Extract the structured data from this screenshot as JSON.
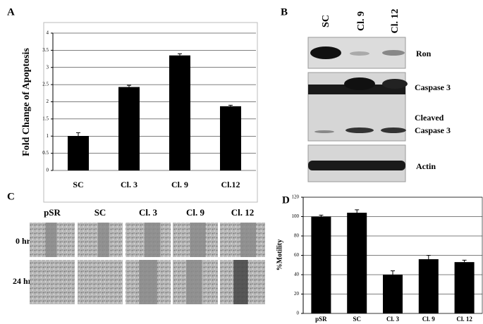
{
  "chart_data": [
    {
      "type": "bar",
      "panel": "A",
      "ylabel": "Fold Change of Apoptosis",
      "categories": [
        "SC",
        "Cl. 3",
        "Cl. 9",
        "Cl.12"
      ],
      "values": [
        1.0,
        2.43,
        3.35,
        1.87
      ],
      "errors": [
        0.1,
        0.05,
        0.05,
        0.03
      ],
      "color": "#000000",
      "ylim": [
        0,
        4
      ],
      "yticks": [
        0,
        0.5,
        1,
        1.5,
        2,
        2.5,
        3,
        3.5,
        4
      ],
      "grid": true
    },
    {
      "type": "bar",
      "panel": "D",
      "ylabel": "%Motility",
      "categories": [
        "pSR",
        "SC",
        "Cl. 3",
        "Cl. 9",
        "Cl. 12"
      ],
      "values": [
        100,
        104,
        40,
        56,
        53
      ],
      "errors": [
        1.5,
        3,
        4,
        4,
        2
      ],
      "color": "#000000",
      "ylim": [
        0,
        120
      ],
      "yticks": [
        0,
        20,
        40,
        60,
        80,
        100,
        120
      ],
      "grid": true
    }
  ],
  "blot": {
    "panel": "B",
    "lanes": [
      "SC",
      "Cl. 9",
      "Cl. 12"
    ],
    "bands": [
      "Ron",
      "Caspase 3",
      "Cleaved",
      "Caspase 3",
      "Actin"
    ]
  },
  "wound": {
    "panel": "C",
    "columns": [
      "pSR",
      "SC",
      "Cl. 3",
      "Cl. 9",
      "Cl. 12"
    ],
    "rows": [
      "0 hr",
      "24 hr"
    ]
  }
}
